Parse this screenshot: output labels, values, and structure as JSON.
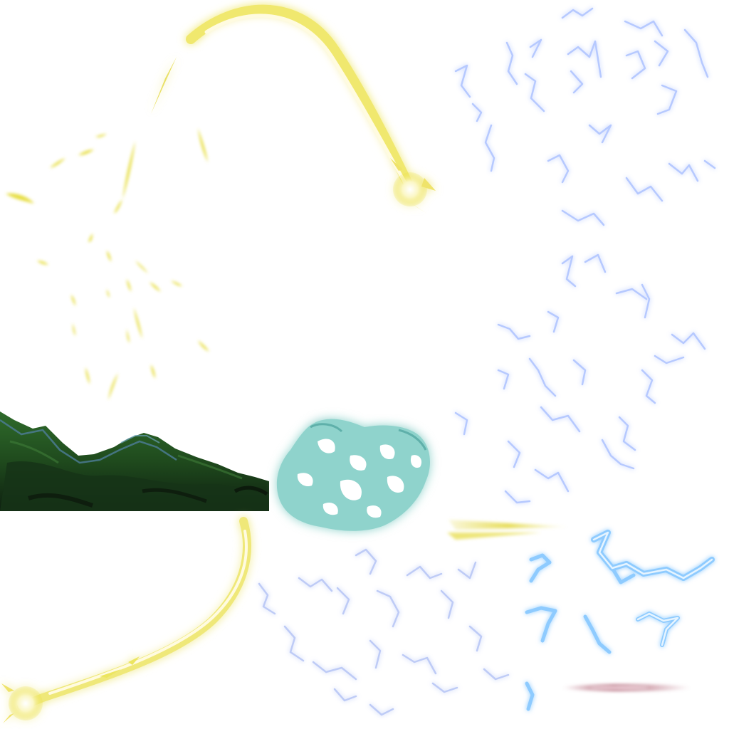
{
  "sprites": [
    {
      "id": "meteor_arc",
      "kind": "meteor-trail",
      "color": "#f2ec7a",
      "glow": "#ffffff"
    },
    {
      "id": "golden_sparks",
      "kind": "particle-burst",
      "color": "#e8df45"
    },
    {
      "id": "lightning_field_upper",
      "kind": "electric-crackles",
      "color": "#c9d9ff",
      "stroke": "#9fb6ff"
    },
    {
      "id": "lightning_field_lower",
      "kind": "electric-crackles",
      "color": "#cfdcff",
      "stroke": "#a6baf5"
    },
    {
      "id": "green_hills",
      "kind": "terrain-strip",
      "colors": [
        "#1f3d1c",
        "#2e6a2a",
        "#0f2412",
        "#4e7d9a"
      ]
    },
    {
      "id": "teal_energy_blob",
      "kind": "energy-cloud",
      "color": "#7ec9c4",
      "glow": "#bfe9e6"
    },
    {
      "id": "yellow_streak",
      "kind": "speed-streak",
      "color": "#e7dd5a"
    },
    {
      "id": "meteor_dive",
      "kind": "meteor-trail",
      "color": "#f3ed86",
      "glow": "#ffffff"
    },
    {
      "id": "blue_lightning_bolts",
      "kind": "lightning-bolts",
      "color": "#8ecbff",
      "glow": "#d5ecff"
    },
    {
      "id": "pink_flare",
      "kind": "lens-streak",
      "color": "#b56a7c"
    }
  ]
}
